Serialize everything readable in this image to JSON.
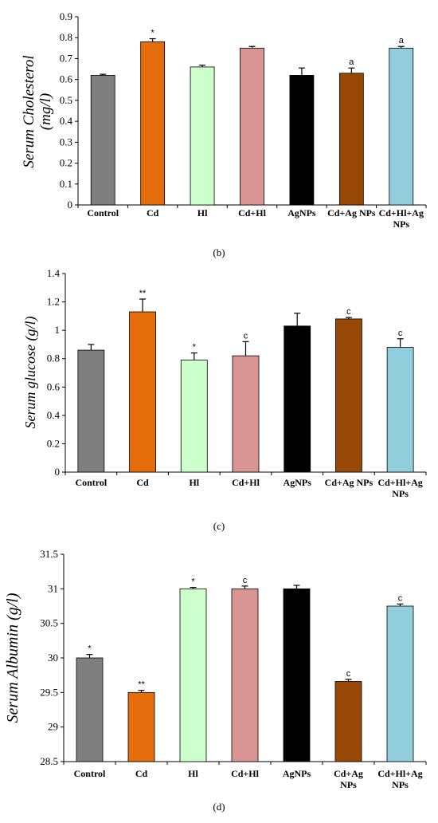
{
  "colors": [
    "#7f7f7f",
    "#e46c0a",
    "#ccffcc",
    "#d99594",
    "#000000",
    "#974806",
    "#92cddc"
  ],
  "chart_data": [
    {
      "type": "bar",
      "panel_label": "(b)",
      "ylabel_lines": [
        "Serum Cholesterol",
        "(mg/l)"
      ],
      "categories": [
        [
          "Control"
        ],
        [
          "Cd"
        ],
        [
          "Hl"
        ],
        [
          "Cd+Hl"
        ],
        [
          "AgNPs"
        ],
        [
          "Cd+Ag NPs"
        ],
        [
          "Cd+Hl+Ag",
          "NPs"
        ]
      ],
      "values": [
        0.62,
        0.78,
        0.66,
        0.75,
        0.62,
        0.63,
        0.75
      ],
      "errors": [
        0.005,
        0.015,
        0.008,
        0.008,
        0.035,
        0.025,
        0.008
      ],
      "annotations": [
        "",
        "*",
        "",
        "",
        "",
        "a",
        "a"
      ],
      "ylim": [
        0,
        0.9
      ],
      "yticks": [
        0,
        0.1,
        0.2,
        0.3,
        0.4,
        0.5,
        0.6,
        0.7,
        0.8,
        0.9
      ],
      "ytick_labels": [
        "0",
        "0.1",
        "0.2",
        "0.3",
        "0.4",
        "0.5",
        "0.6",
        "0.7",
        "0.8",
        "0.9"
      ]
    },
    {
      "type": "bar",
      "panel_label": "(c)",
      "ylabel_lines": [
        "Serum  glucose (g/l)"
      ],
      "categories": [
        [
          "Control"
        ],
        [
          "Cd"
        ],
        [
          "Hl"
        ],
        [
          "Cd+Hl"
        ],
        [
          "AgNPs"
        ],
        [
          "Cd+Ag NPs"
        ],
        [
          "Cd+Hl+Ag",
          "NPs"
        ]
      ],
      "values": [
        0.86,
        1.13,
        0.79,
        0.82,
        1.03,
        1.08,
        0.88
      ],
      "errors": [
        0.04,
        0.09,
        0.05,
        0.1,
        0.09,
        0.01,
        0.06
      ],
      "annotations": [
        "",
        "**",
        "*",
        "c",
        "",
        "c",
        "c"
      ],
      "ylim": [
        0,
        1.4
      ],
      "yticks": [
        0,
        0.2,
        0.4,
        0.6,
        0.8,
        1.0,
        1.2,
        1.4
      ],
      "ytick_labels": [
        "0",
        "0.2",
        "0.4",
        "0.6",
        "0.8",
        "1",
        "1.2",
        "1.4"
      ]
    },
    {
      "type": "bar",
      "panel_label": "(d)",
      "ylabel_lines": [
        "Serum  Albumin (g/l)"
      ],
      "categories": [
        [
          "Control"
        ],
        [
          "Cd"
        ],
        [
          "Hl"
        ],
        [
          "Cd+Hl"
        ],
        [
          "AgNPs"
        ],
        [
          "Cd+Ag",
          "NPs"
        ],
        [
          "Cd+Hl+Ag",
          "NPs"
        ]
      ],
      "values": [
        30.0,
        29.5,
        31.0,
        31.0,
        31.0,
        29.66,
        30.75
      ],
      "errors": [
        0.05,
        0.03,
        0.02,
        0.04,
        0.05,
        0.03,
        0.03
      ],
      "annotations": [
        "*",
        "**",
        "*",
        "c",
        "",
        "c",
        "c"
      ],
      "ylim": [
        28.5,
        31.5
      ],
      "yticks": [
        28.5,
        29,
        29.5,
        30,
        30.5,
        31,
        31.5
      ],
      "ytick_labels": [
        "28.5",
        "29",
        "29.5",
        "30",
        "30.5",
        "31",
        "31.5"
      ]
    }
  ]
}
